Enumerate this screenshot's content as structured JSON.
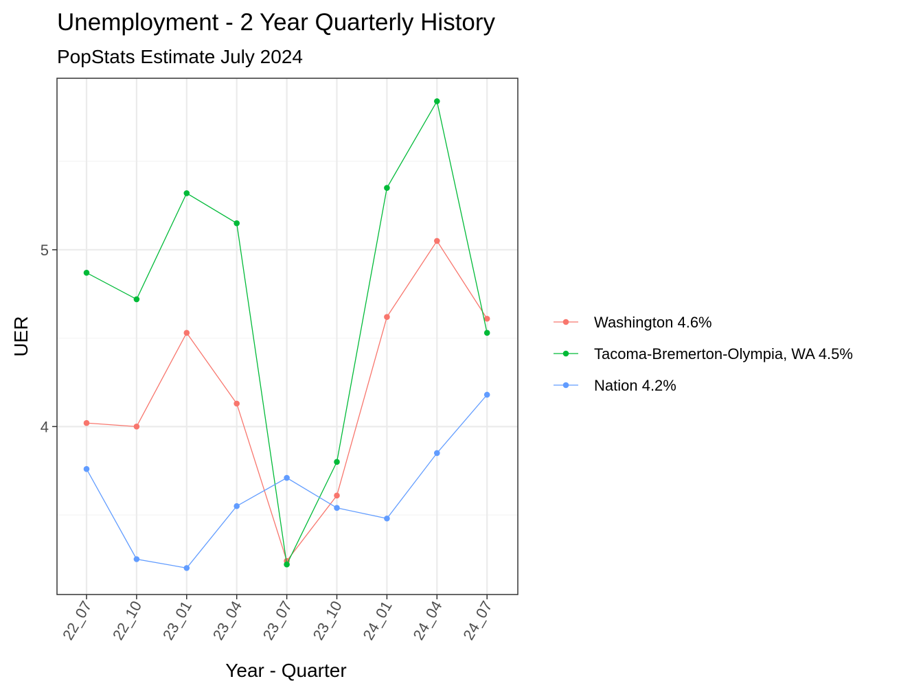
{
  "chart_data": {
    "type": "line",
    "title": "Unemployment - 2 Year Quarterly History",
    "subtitle": "PopStats Estimate July 2024",
    "xlabel": "Year - Quarter",
    "ylabel": "UER",
    "categories": [
      "22_07",
      "22_10",
      "23_01",
      "23_04",
      "23_07",
      "23_10",
      "24_01",
      "24_04",
      "24_07"
    ],
    "y_ticks": [
      4,
      5
    ],
    "ylim": [
      3.05,
      5.97
    ],
    "grid": true,
    "legend_position": "right",
    "series": [
      {
        "name": "Washington 4.6%",
        "color": "#f8766d",
        "values": [
          4.02,
          4.0,
          4.53,
          4.13,
          3.24,
          3.61,
          4.62,
          5.05,
          4.61
        ]
      },
      {
        "name": "Tacoma-Bremerton-Olympia, WA 4.5%",
        "color": "#00ba38",
        "values": [
          4.87,
          4.72,
          5.32,
          5.15,
          3.22,
          3.8,
          5.35,
          5.84,
          4.53
        ]
      },
      {
        "name": "Nation 4.2%",
        "color": "#619cff",
        "values": [
          3.76,
          3.25,
          3.2,
          3.55,
          3.71,
          3.54,
          3.48,
          3.85,
          4.18
        ]
      }
    ]
  }
}
